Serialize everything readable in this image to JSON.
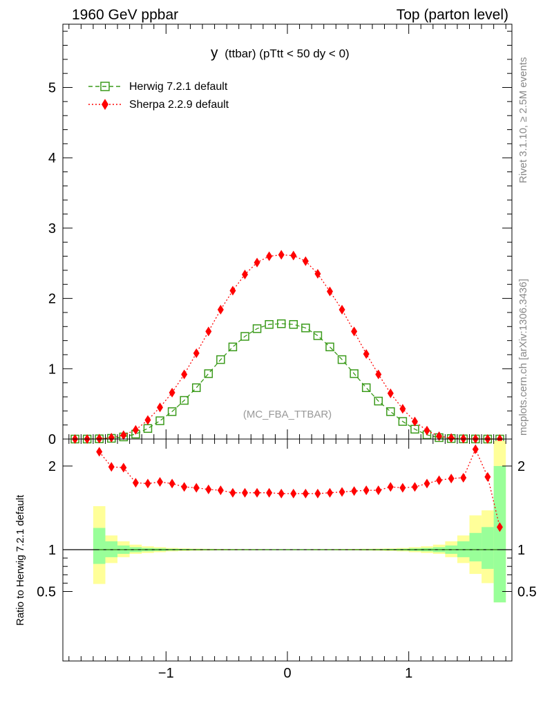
{
  "header": {
    "left": "1960 GeV ppbar",
    "right": "Top (parton level)"
  },
  "side_labels": {
    "rivet": "Rivet 3.1.10, ≥ 2.5M events",
    "mcplots": "mcplots.cern.ch [arXiv:1306.3436]"
  },
  "chart_data": {
    "type": "line",
    "title": "y (ttbar) (pTtt < 50 dy < 0)",
    "title_main": "y",
    "title_rest": "(ttbar) (pTtt < 50 dy < 0)",
    "annotation": "(MC_FBA_TTBAR)",
    "xlim": [
      -1.85,
      1.85
    ],
    "ylim": [
      0,
      5.9
    ],
    "x_ticks": [
      -1,
      0,
      1
    ],
    "x_tick_labels": [
      "−1",
      "0",
      "1"
    ],
    "y_ticks": [
      0,
      1,
      2,
      3,
      4,
      5
    ],
    "y_tick_labels": [
      "0",
      "1",
      "2",
      "3",
      "4",
      "5"
    ],
    "x": [
      -1.75,
      -1.65,
      -1.55,
      -1.45,
      -1.35,
      -1.25,
      -1.15,
      -1.05,
      -0.95,
      -0.85,
      -0.75,
      -0.65,
      -0.55,
      -0.45,
      -0.35,
      -0.25,
      -0.15,
      -0.05,
      0.05,
      0.15,
      0.25,
      0.35,
      0.45,
      0.55,
      0.65,
      0.75,
      0.85,
      0.95,
      1.05,
      1.15,
      1.25,
      1.35,
      1.45,
      1.55,
      1.65,
      1.75
    ],
    "series": [
      {
        "name": "Herwig 7.2.1 default",
        "color": "#3a9a1a",
        "marker": "open-square",
        "line": "dashed",
        "values": [
          0,
          0,
          0.003,
          0.01,
          0.03,
          0.07,
          0.15,
          0.26,
          0.39,
          0.55,
          0.73,
          0.93,
          1.13,
          1.31,
          1.46,
          1.57,
          1.63,
          1.64,
          1.63,
          1.58,
          1.47,
          1.31,
          1.13,
          0.93,
          0.73,
          0.54,
          0.39,
          0.25,
          0.14,
          0.06,
          0.02,
          0.007,
          0.002,
          0.001,
          0,
          0
        ]
      },
      {
        "name": "Sherpa 2.2.9 default",
        "color": "#ff0000",
        "marker": "filled-diamond",
        "line": "dotted",
        "values": [
          0,
          0,
          0.006,
          0.02,
          0.055,
          0.13,
          0.27,
          0.45,
          0.66,
          0.92,
          1.22,
          1.53,
          1.84,
          2.11,
          2.34,
          2.51,
          2.6,
          2.62,
          2.61,
          2.53,
          2.35,
          2.1,
          1.84,
          1.53,
          1.21,
          0.92,
          0.65,
          0.43,
          0.25,
          0.12,
          0.04,
          0.015,
          0.005,
          0.002,
          0.001,
          0
        ]
      }
    ],
    "ratio": {
      "ylabel": "Ratio to Herwig 7.2.1 default",
      "y_ticks": [
        0.5,
        1,
        2
      ],
      "y_tick_labels": [
        "0.5",
        "1",
        "2"
      ],
      "reference": 1,
      "values": [
        null,
        null,
        2.17,
        1.99,
        1.98,
        1.8,
        1.79,
        1.81,
        1.79,
        1.75,
        1.74,
        1.72,
        1.71,
        1.68,
        1.68,
        1.68,
        1.68,
        1.67,
        1.67,
        1.67,
        1.67,
        1.68,
        1.69,
        1.7,
        1.71,
        1.71,
        1.75,
        1.74,
        1.75,
        1.79,
        1.83,
        1.85,
        1.86,
        2.2,
        1.87,
        1.27
      ],
      "band_inner": [
        null,
        null,
        [
          0.83,
          1.26
        ],
        [
          0.91,
          1.1
        ],
        [
          0.95,
          1.05
        ],
        [
          0.97,
          1.03
        ],
        [
          0.98,
          1.02
        ],
        [
          0.985,
          1.015
        ],
        [
          0.99,
          1.01
        ],
        [
          0.992,
          1.008
        ],
        [
          0.994,
          1.006
        ],
        [
          0.995,
          1.005
        ],
        [
          0.996,
          1.004
        ],
        [
          0.996,
          1.004
        ],
        [
          0.997,
          1.003
        ],
        [
          0.997,
          1.003
        ],
        [
          0.997,
          1.003
        ],
        [
          0.997,
          1.003
        ],
        [
          0.997,
          1.003
        ],
        [
          0.997,
          1.003
        ],
        [
          0.997,
          1.003
        ],
        [
          0.997,
          1.003
        ],
        [
          0.996,
          1.004
        ],
        [
          0.996,
          1.004
        ],
        [
          0.995,
          1.005
        ],
        [
          0.994,
          1.006
        ],
        [
          0.992,
          1.008
        ],
        [
          0.99,
          1.01
        ],
        [
          0.985,
          1.015
        ],
        [
          0.98,
          1.02
        ],
        [
          0.97,
          1.03
        ],
        [
          0.95,
          1.05
        ],
        [
          0.91,
          1.1
        ],
        [
          0.86,
          1.2
        ],
        [
          0.77,
          1.27
        ],
        [
          0.37,
          2.0
        ]
      ],
      "band_outer": [
        null,
        null,
        [
          0.59,
          1.52
        ],
        [
          0.84,
          1.17
        ],
        [
          0.91,
          1.1
        ],
        [
          0.95,
          1.06
        ],
        [
          0.96,
          1.04
        ],
        [
          0.97,
          1.03
        ],
        [
          0.98,
          1.02
        ],
        [
          0.985,
          1.015
        ],
        [
          0.988,
          1.012
        ],
        [
          0.99,
          1.01
        ],
        [
          0.992,
          1.008
        ],
        [
          0.993,
          1.007
        ],
        [
          0.994,
          1.006
        ],
        [
          0.994,
          1.006
        ],
        [
          0.995,
          1.005
        ],
        [
          0.995,
          1.005
        ],
        [
          0.995,
          1.005
        ],
        [
          0.995,
          1.005
        ],
        [
          0.994,
          1.006
        ],
        [
          0.994,
          1.006
        ],
        [
          0.993,
          1.007
        ],
        [
          0.992,
          1.008
        ],
        [
          0.99,
          1.01
        ],
        [
          0.988,
          1.012
        ],
        [
          0.985,
          1.015
        ],
        [
          0.98,
          1.02
        ],
        [
          0.97,
          1.03
        ],
        [
          0.96,
          1.04
        ],
        [
          0.95,
          1.06
        ],
        [
          0.91,
          1.1
        ],
        [
          0.84,
          1.17
        ],
        [
          0.71,
          1.41
        ],
        [
          0.6,
          1.47
        ],
        [
          0.37,
          2.3
        ]
      ],
      "band_colors": {
        "inner": "#99ff99",
        "outer": "#ffff99"
      }
    }
  }
}
